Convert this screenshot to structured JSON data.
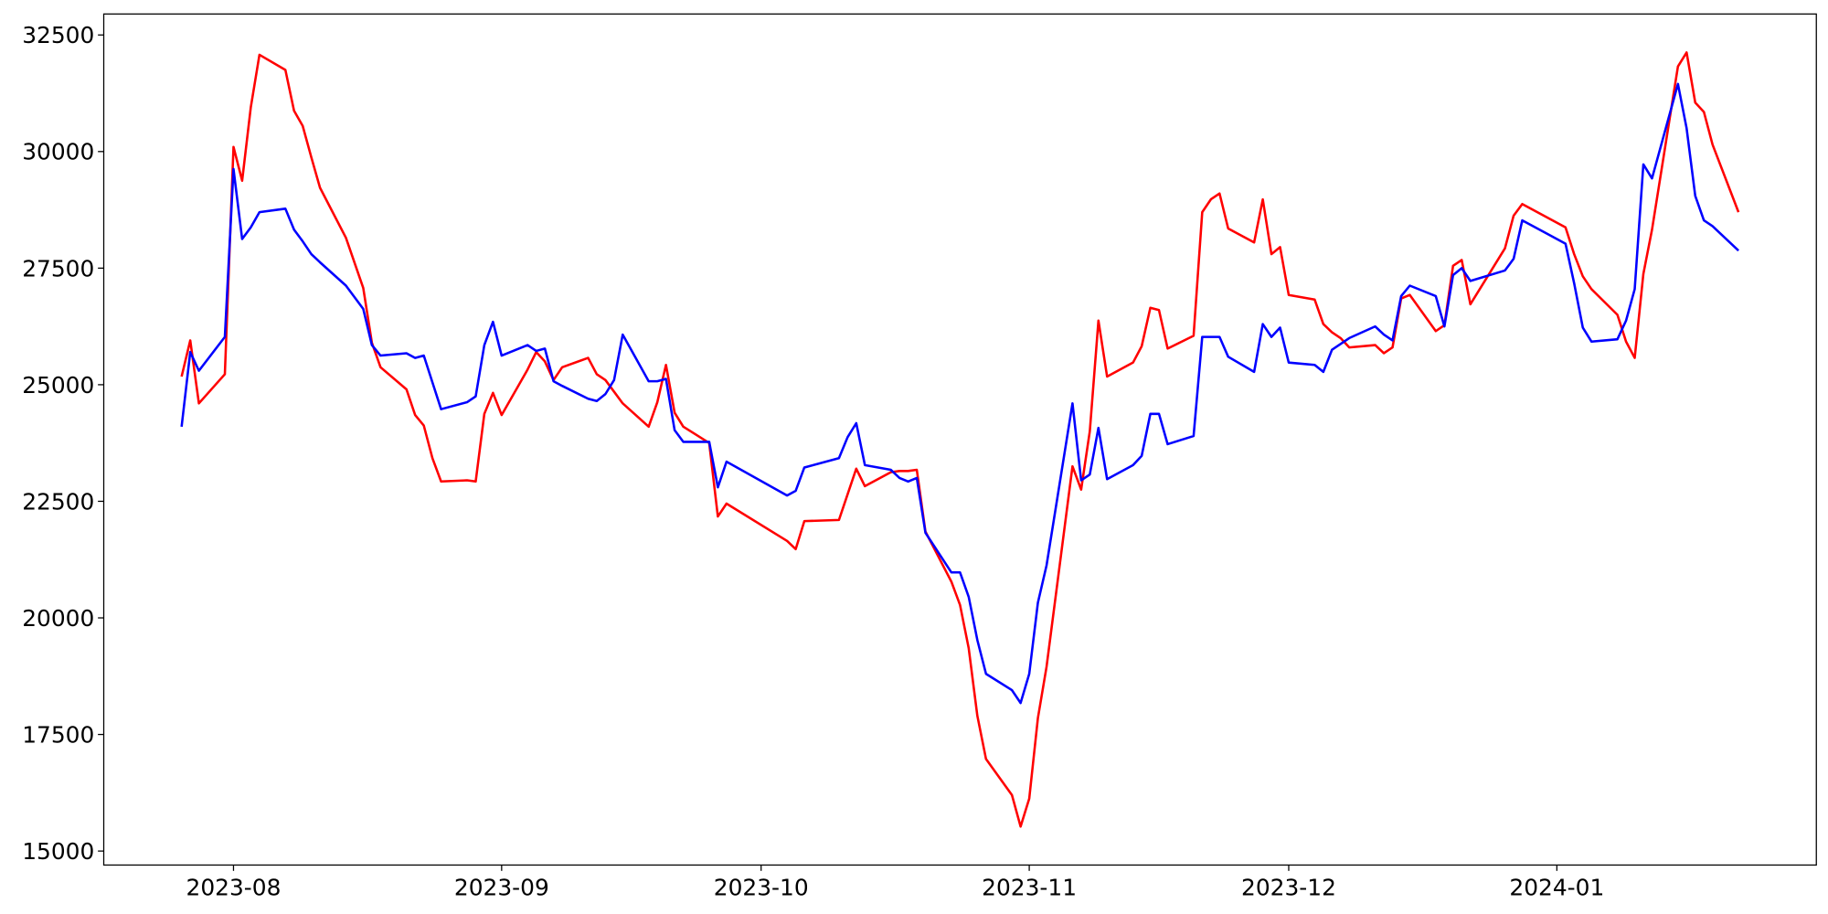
{
  "chart_data": {
    "type": "line",
    "x": [
      -6,
      -5,
      -4,
      -1,
      0,
      1,
      2,
      3,
      6,
      7,
      8,
      9,
      10,
      13,
      15,
      16,
      17,
      20,
      21,
      22,
      23,
      24,
      27,
      28,
      29,
      30,
      31,
      34,
      35,
      36,
      37,
      38,
      41,
      42,
      43,
      44,
      45,
      48,
      49,
      50,
      51,
      52,
      55,
      56,
      57,
      64,
      65,
      66,
      70,
      71,
      72,
      73,
      76,
      77,
      78,
      79,
      80,
      83,
      84,
      85,
      86,
      87,
      90,
      91,
      92,
      93,
      94,
      97,
      98,
      99,
      100,
      101,
      104,
      105,
      106,
      107,
      108,
      111,
      112,
      113,
      114,
      115,
      118,
      119,
      120,
      121,
      122,
      125,
      126,
      127,
      128,
      129,
      132,
      133,
      134,
      135,
      136,
      139,
      140,
      141,
      142,
      143,
      147,
      148,
      149,
      154,
      155,
      156,
      157,
      160,
      161,
      162,
      163,
      164,
      167,
      168,
      169,
      170,
      171,
      174
    ],
    "series": [
      {
        "color": "red",
        "values": [
          25175,
          25950,
          24600,
          25225,
          30100,
          29375,
          30950,
          32075,
          31750,
          30875,
          30550,
          29875,
          29225,
          28150,
          27075,
          25900,
          25375,
          24900,
          24350,
          24125,
          23425,
          22925,
          22950,
          22925,
          24375,
          24825,
          24350,
          25325,
          25700,
          25500,
          25100,
          25375,
          25575,
          25225,
          25100,
          24850,
          24600,
          24100,
          24625,
          25425,
          24400,
          24100,
          23750,
          22175,
          22450,
          21650,
          21475,
          22075,
          22100,
          22650,
          23200,
          22825,
          23125,
          23150,
          23150,
          23175,
          21850,
          20775,
          20275,
          19350,
          17900,
          16975,
          16200,
          15525,
          16125,
          17850,
          18950,
          23250,
          22750,
          24000,
          26375,
          25175,
          25475,
          25825,
          26650,
          26600,
          25775,
          26050,
          28700,
          28975,
          29100,
          28350,
          28050,
          28975,
          27800,
          27950,
          26925,
          26825,
          26300,
          26125,
          26000,
          25800,
          25850,
          25675,
          25800,
          26850,
          26925,
          26150,
          26275,
          27550,
          27675,
          26725,
          27925,
          28625,
          28875,
          28375,
          27800,
          27325,
          27050,
          26500,
          25925,
          25575,
          27375,
          28325,
          31825,
          32125,
          31050,
          30850,
          30150,
          28700
        ]
      },
      {
        "color": "blue",
        "values": [
          24100,
          25700,
          25300,
          26025,
          29625,
          28125,
          28375,
          28700,
          28775,
          28325,
          28075,
          27800,
          27625,
          27125,
          26625,
          25850,
          25625,
          25675,
          25575,
          25625,
          25050,
          24475,
          24625,
          24750,
          25850,
          26350,
          25625,
          25850,
          25725,
          25775,
          25075,
          24975,
          24700,
          24650,
          24800,
          25100,
          26075,
          25075,
          25075,
          25125,
          24025,
          23775,
          23775,
          22800,
          23350,
          22625,
          22725,
          23225,
          23425,
          23875,
          24175,
          23275,
          23175,
          23000,
          22925,
          23000,
          21825,
          20975,
          20975,
          20450,
          19525,
          18800,
          18450,
          18175,
          18800,
          20325,
          21125,
          24600,
          22950,
          23075,
          24075,
          22975,
          23275,
          23475,
          24375,
          24375,
          23725,
          23900,
          26025,
          26025,
          26025,
          25600,
          25275,
          26300,
          26025,
          26225,
          25475,
          25425,
          25275,
          25750,
          25875,
          26000,
          26250,
          26075,
          25950,
          26900,
          27125,
          26900,
          26250,
          27350,
          27500,
          27225,
          27450,
          27700,
          28525,
          28025,
          27175,
          26225,
          25925,
          25975,
          26375,
          27050,
          29725,
          29425,
          31450,
          30500,
          29050,
          28525,
          28400,
          27875
        ]
      }
    ],
    "xlim": [
      -15,
      183
    ],
    "xticks": [
      {
        "value": 0,
        "label": "2023-08"
      },
      {
        "value": 31,
        "label": "2023-09"
      },
      {
        "value": 61,
        "label": "2023-10"
      },
      {
        "value": 92,
        "label": "2023-11"
      },
      {
        "value": 122,
        "label": "2023-12"
      },
      {
        "value": 153,
        "label": "2024-01"
      }
    ],
    "ylim": [
      14700,
      32950
    ],
    "yticks": [
      15000,
      17500,
      20000,
      22500,
      25000,
      27500,
      30000,
      32500
    ]
  }
}
